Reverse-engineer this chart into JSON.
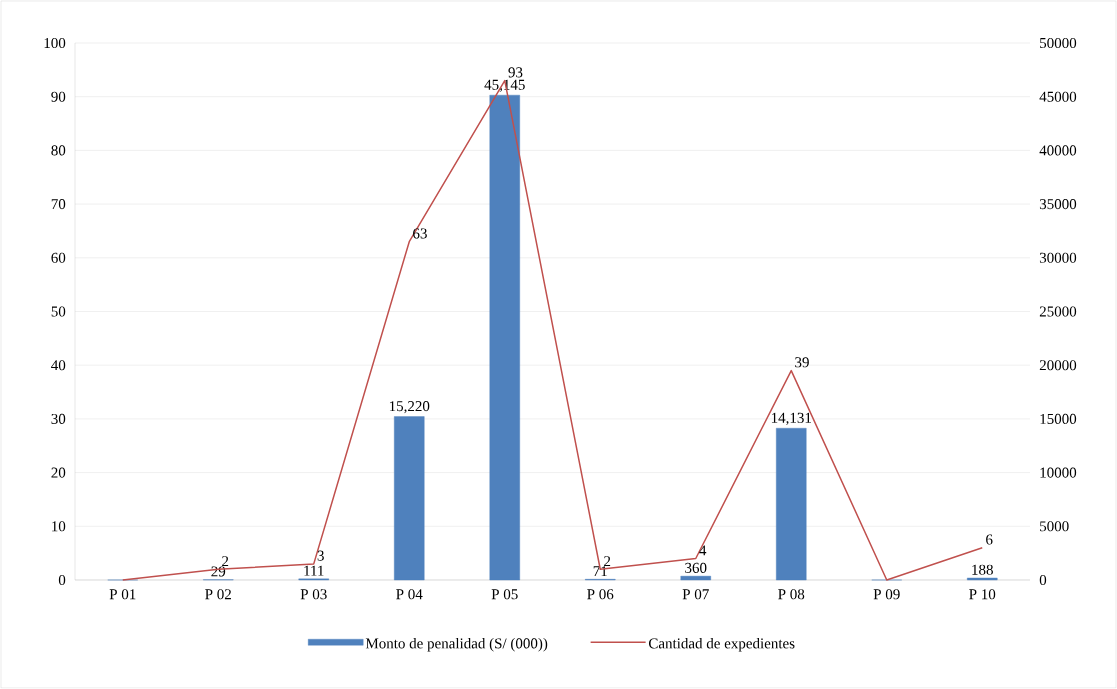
{
  "chart_data": {
    "type": "bar",
    "categories": [
      "P 01",
      "P 02",
      "P 03",
      "P 04",
      "P 05",
      "P 06",
      "P 07",
      "P 08",
      "P 09",
      "P 10"
    ],
    "series": [
      {
        "name": "Monto de penalidad (S/ (000))",
        "axis": "y2",
        "color": "#4f81bd",
        "values": [
          0,
          29,
          111,
          15220,
          45145,
          71,
          360,
          14131,
          0,
          188
        ],
        "value_labels": [
          null,
          "29",
          "111",
          "15,220",
          "45,145",
          "71",
          "360",
          "14,131",
          null,
          "188"
        ]
      },
      {
        "name": "Cantidad de expedientes",
        "type": "line",
        "axis": "y",
        "color": "#c0504d",
        "values": [
          0,
          2,
          3,
          63,
          93,
          2,
          4,
          39,
          0,
          6
        ],
        "value_labels": [
          null,
          "2",
          "3",
          "63",
          "93",
          "2",
          "4",
          "39",
          null,
          "6"
        ]
      }
    ],
    "ylim": [
      0,
      100
    ],
    "yticks": [
      0,
      10,
      20,
      30,
      40,
      50,
      60,
      70,
      80,
      90,
      100
    ],
    "y2lim": [
      0,
      50000
    ],
    "y2ticks": [
      0,
      5000,
      10000,
      15000,
      20000,
      25000,
      30000,
      35000,
      40000,
      45000,
      50000
    ],
    "grid": "y",
    "legend": "bottom",
    "marker": "none",
    "line_style": "solid"
  }
}
